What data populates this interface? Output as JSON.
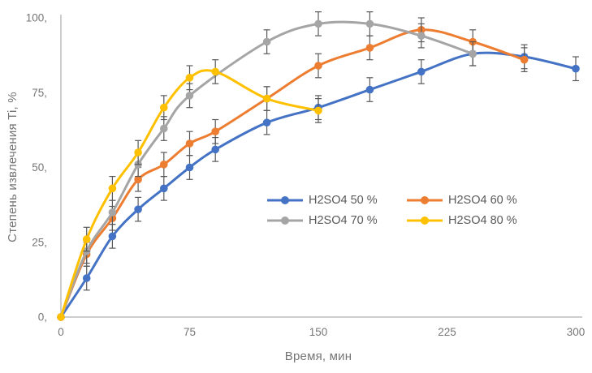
{
  "chart_data": {
    "type": "line",
    "title": "",
    "xlabel": "Время, мин",
    "ylabel": "Степень извлечения Ti, %",
    "xlim": [
      0,
      300
    ],
    "ylim": [
      0,
      100
    ],
    "x_tick_values": [
      0,
      75,
      150,
      225,
      300
    ],
    "x_tick_labels": [
      "0",
      "75",
      "150",
      "225",
      "300"
    ],
    "y_tick_values": [
      0,
      25,
      50,
      75,
      100
    ],
    "y_tick_labels": [
      "0,",
      "25,",
      "50,",
      "75,",
      "100,"
    ],
    "grid": false,
    "legend_position": "inside-center-lower",
    "error_y": 4,
    "colors": {
      "axis": "#C6C6C6",
      "tick_text": "#767676",
      "error_bar": "#595959",
      "legend_text": "#595959",
      "background": "#FFFFFF"
    },
    "series": [
      {
        "name": "H2SO4 50 %",
        "color": "#4472C4",
        "x": [
          0,
          15,
          30,
          45,
          60,
          75,
          90,
          120,
          150,
          180,
          210,
          240,
          270,
          300
        ],
        "y": [
          0,
          13,
          27,
          36,
          43,
          50,
          56,
          65,
          70,
          76,
          82,
          88,
          87,
          83
        ]
      },
      {
        "name": "H2SO4 60 %",
        "color": "#ED7D31",
        "x": [
          0,
          15,
          30,
          45,
          60,
          75,
          90,
          120,
          150,
          180,
          210,
          240,
          270
        ],
        "y": [
          0,
          21,
          33,
          46,
          51,
          58,
          62,
          73,
          84,
          90,
          96,
          92,
          86
        ]
      },
      {
        "name": "H2SO4 70 %",
        "color": "#A5A5A5",
        "x": [
          0,
          15,
          30,
          45,
          60,
          75,
          120,
          150,
          180,
          210,
          240
        ],
        "y": [
          0,
          22,
          35,
          51,
          63,
          74,
          92,
          98,
          98,
          94,
          88
        ]
      },
      {
        "name": "H2SO4 80 %",
        "color": "#FFC000",
        "x": [
          0,
          15,
          30,
          45,
          60,
          75,
          90,
          120,
          150
        ],
        "y": [
          0,
          26,
          43,
          55,
          70,
          80,
          82,
          73,
          69
        ]
      }
    ]
  }
}
